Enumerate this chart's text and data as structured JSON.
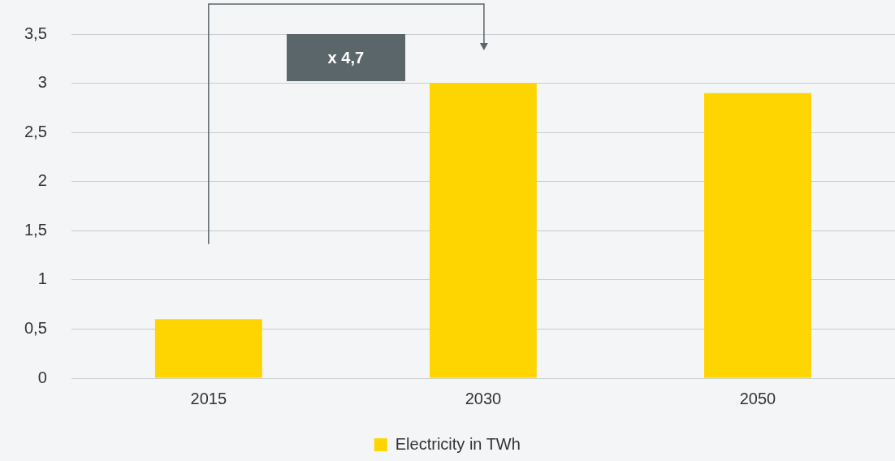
{
  "chart_data": {
    "type": "bar",
    "categories": [
      "2015",
      "2030",
      "2050"
    ],
    "series": [
      {
        "name": "Electricity in TWh",
        "color": "#ffd500",
        "values": [
          0.6,
          3.0,
          2.9
        ]
      }
    ],
    "ylim": [
      0,
      3.5
    ],
    "yticks": [
      0,
      {
        "value": 0.5,
        "label": "0,5"
      },
      1,
      {
        "value": 1.5,
        "label": "1,5"
      },
      2,
      {
        "value": 2.5,
        "label": "2,5"
      },
      3,
      {
        "value": 3.5,
        "label": "3,5"
      }
    ],
    "grid": "y",
    "legend": "bottom",
    "annotations": [
      "x 4,7"
    ]
  }
}
